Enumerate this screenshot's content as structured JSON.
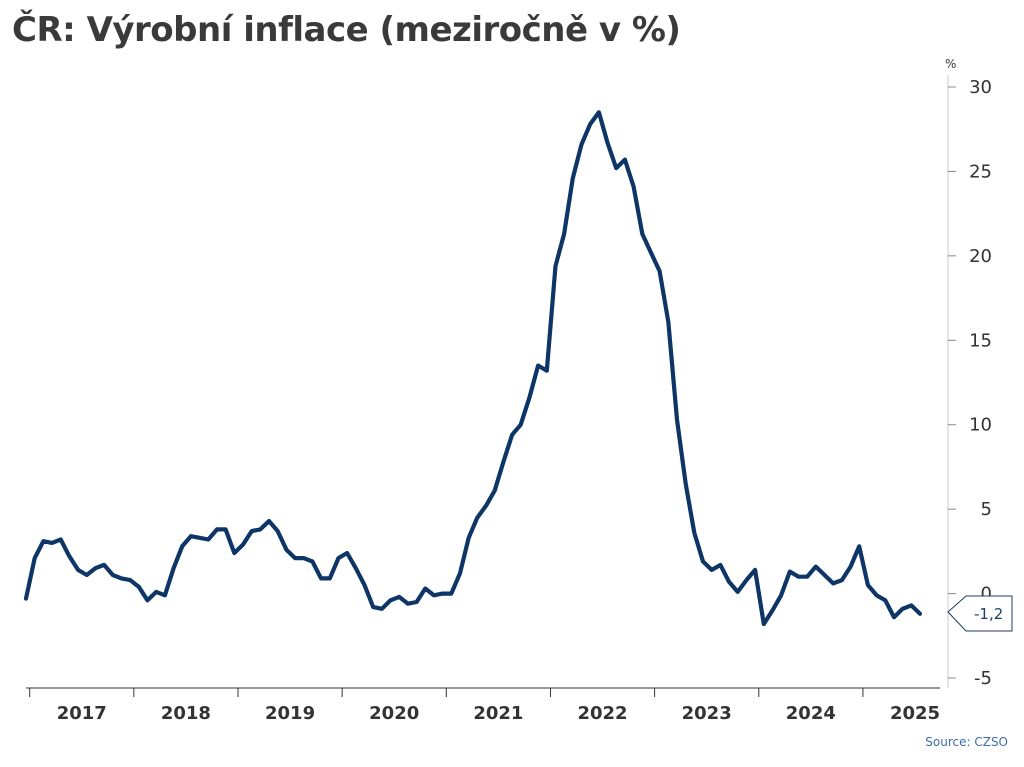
{
  "chart_data": {
    "type": "line",
    "title": "ČR: Výrobní inflace (meziročně v %)",
    "y_unit": "%",
    "source": "Source: CZSO",
    "ylim": [
      -5,
      30
    ],
    "y_ticks": [
      30,
      25,
      20,
      15,
      10,
      5,
      0,
      -5
    ],
    "x_categories": [
      "2017",
      "2018",
      "2019",
      "2020",
      "2021",
      "2022",
      "2023",
      "2024",
      "2025"
    ],
    "line_color": "#0d3566",
    "series": [
      {
        "x": [
          "2016-12",
          "2017-01",
          "2017-02",
          "2017-03",
          "2017-04",
          "2017-05",
          "2017-06",
          "2017-07",
          "2017-08",
          "2017-09",
          "2017-10",
          "2017-11",
          "2017-12",
          "2018-01",
          "2018-02",
          "2018-03",
          "2018-04",
          "2018-05",
          "2018-06",
          "2018-07",
          "2018-08",
          "2018-09",
          "2018-10",
          "2018-11",
          "2018-12",
          "2019-01",
          "2019-02",
          "2019-03",
          "2019-04",
          "2019-05",
          "2019-06",
          "2019-07",
          "2019-08",
          "2019-09",
          "2019-10",
          "2019-11",
          "2019-12",
          "2020-01",
          "2020-02",
          "2020-03",
          "2020-04",
          "2020-05",
          "2020-06",
          "2020-07",
          "2020-08",
          "2020-09",
          "2020-10",
          "2020-11",
          "2020-12",
          "2021-01",
          "2021-02",
          "2021-03",
          "2021-04",
          "2021-05",
          "2021-06",
          "2021-07",
          "2021-08",
          "2021-09",
          "2021-10",
          "2021-11",
          "2021-12",
          "2022-01",
          "2022-02",
          "2022-03",
          "2022-04",
          "2022-05",
          "2022-06",
          "2022-07",
          "2022-08",
          "2022-09",
          "2022-10",
          "2022-11",
          "2022-12",
          "2023-01",
          "2023-02",
          "2023-03",
          "2023-04",
          "2023-05",
          "2023-06",
          "2023-07",
          "2023-08",
          "2023-09",
          "2023-10",
          "2023-11",
          "2023-12",
          "2024-01",
          "2024-02",
          "2024-03",
          "2024-04",
          "2024-05",
          "2024-06",
          "2024-07",
          "2024-08",
          "2024-09",
          "2024-10",
          "2024-11",
          "2024-12",
          "2025-01",
          "2025-02",
          "2025-03",
          "2025-04",
          "2025-05",
          "2025-06",
          "2025-07"
        ],
        "y": [
          -0.3,
          2.1,
          3.1,
          3.0,
          3.2,
          2.2,
          1.4,
          1.1,
          1.5,
          1.7,
          1.1,
          0.9,
          0.8,
          0.4,
          -0.4,
          0.1,
          -0.1,
          1.5,
          2.8,
          3.4,
          3.3,
          3.2,
          3.8,
          3.8,
          2.4,
          2.9,
          3.7,
          3.8,
          4.3,
          3.7,
          2.6,
          2.1,
          2.1,
          1.9,
          0.9,
          0.9,
          2.1,
          2.4,
          1.5,
          0.5,
          -0.8,
          -0.9,
          -0.4,
          -0.2,
          -0.6,
          -0.5,
          0.3,
          -0.1,
          0.0,
          0.0,
          1.2,
          3.3,
          4.5,
          5.2,
          6.1,
          7.8,
          9.4,
          10.0,
          11.6,
          13.5,
          13.2,
          19.4,
          21.3,
          24.6,
          26.6,
          27.8,
          28.5,
          26.7,
          25.2,
          25.7,
          24.1,
          21.3,
          20.2,
          19.1,
          16.1,
          10.3,
          6.5,
          3.6,
          1.9,
          1.4,
          1.7,
          0.7,
          0.1,
          0.8,
          1.4,
          -1.8,
          -1.0,
          -0.1,
          1.3,
          1.0,
          1.0,
          1.6,
          1.1,
          0.6,
          0.8,
          1.6,
          2.8,
          0.5,
          -0.1,
          -0.4,
          -1.4,
          -0.9,
          -0.7,
          -1.2
        ]
      }
    ],
    "last_value_label": "-1,2"
  }
}
